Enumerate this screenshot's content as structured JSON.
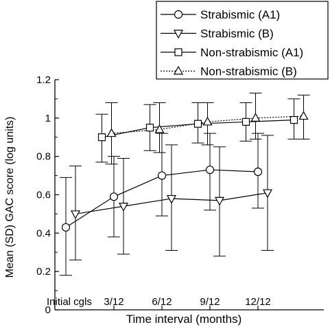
{
  "chart_data": {
    "type": "line",
    "xlabel": "Time interval (months)",
    "ylabel": "Mean (SD) GAC score (log units)",
    "categories": [
      "Initial cgls",
      "3/12",
      "6/12",
      "9/12",
      "12/12"
    ],
    "ylim": [
      0,
      1.2
    ],
    "yticks": [
      "0",
      "0.2",
      "0.4",
      "0.6",
      "0.8",
      "1",
      "1.2"
    ],
    "grid": false,
    "legend_position": "top-right",
    "series": [
      {
        "name": "Strabismic (A1)",
        "marker": "circle",
        "line_style": "solid",
        "x": [
          0,
          1,
          2,
          3,
          4
        ],
        "y": [
          0.43,
          0.59,
          0.7,
          0.73,
          0.72
        ],
        "y_lower": [
          0.18,
          0.38,
          0.49,
          0.52,
          0.53
        ],
        "y_upper": [
          0.69,
          0.8,
          0.92,
          0.92,
          0.92
        ]
      },
      {
        "name": "Strabismic (B)",
        "marker": "triangle-down",
        "line_style": "solid",
        "x": [
          0.2,
          1.2,
          2.2,
          3.2,
          4.2
        ],
        "y": [
          0.5,
          0.54,
          0.58,
          0.57,
          0.61
        ],
        "y_lower": [
          0.26,
          0.29,
          0.31,
          0.28,
          0.31
        ],
        "y_upper": [
          0.75,
          0.79,
          0.86,
          0.85,
          0.91
        ]
      },
      {
        "name": "Non-strabismic (A1)",
        "marker": "square",
        "line_style": "solid",
        "x": [
          0.75,
          1.75,
          2.75,
          3.75,
          4.75
        ],
        "y": [
          0.9,
          0.95,
          0.97,
          0.98,
          0.99
        ],
        "y_lower": [
          0.77,
          0.83,
          0.87,
          0.88,
          0.89
        ],
        "y_upper": [
          1.02,
          1.07,
          1.08,
          1.08,
          1.1
        ]
      },
      {
        "name": "Non-strabismic (B)",
        "marker": "triangle-up",
        "line_style": "dotted",
        "x": [
          0.95,
          1.95,
          2.95,
          3.95,
          4.95
        ],
        "y": [
          0.92,
          0.94,
          0.98,
          1.0,
          1.01
        ],
        "y_lower": [
          0.76,
          0.82,
          0.86,
          0.89,
          0.89
        ],
        "y_upper": [
          1.08,
          1.08,
          1.08,
          1.13,
          1.12
        ]
      }
    ]
  }
}
